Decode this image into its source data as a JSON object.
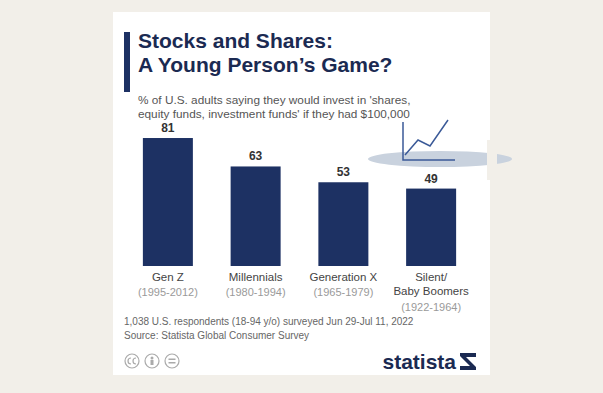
{
  "chart_data": {
    "type": "bar",
    "title": "Stocks and Shares:\nA Young Person’s Game?",
    "subtitle": "% of U.S. adults saying they would invest in 'shares,\nequity funds, investment funds' if they had $100,000",
    "categories": [
      "Gen Z",
      "Millennials",
      "Generation X",
      "Silent/\nBaby Boomers"
    ],
    "category_years": [
      "(1995-2012)",
      "(1980-1994)",
      "(1965-1979)",
      "(1922-1964)"
    ],
    "values": [
      81,
      63,
      53,
      49
    ],
    "color": "#1d3163",
    "ylim": [
      0,
      100
    ],
    "data_labels": true,
    "tick_labels": "x",
    "grid": false,
    "note": "1,038 U.S. respondents (18-94 y/o) surveyed Jun 29-Jul 11, 2022",
    "source": "Source: Statista Global Consumer Survey",
    "logo": "statista"
  }
}
